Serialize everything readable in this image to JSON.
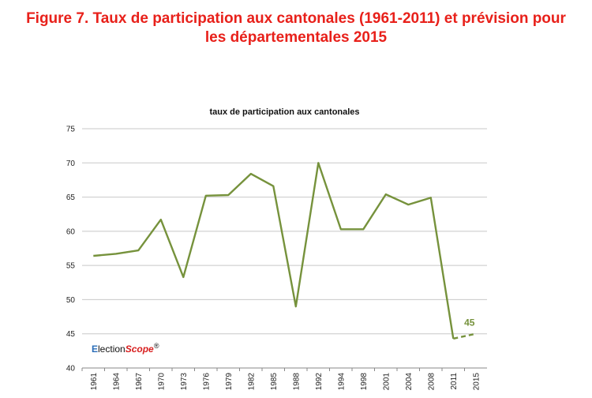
{
  "figure": {
    "title_line1": "Figure 7. Taux de participation aux cantonales (1961-2011) et prévision pour",
    "title_line2": "les départementales 2015"
  },
  "logo": {
    "part1": "E",
    "part2": "lection",
    "part3": "Scope",
    "mark": "®"
  },
  "colors": {
    "title": "#e8201a",
    "series": "#76923c",
    "grid": "#c8c8c8"
  },
  "chart_data": {
    "type": "line",
    "title": "taux de participation aux cantonales",
    "xlabel": "",
    "ylabel": "",
    "categories": [
      "1961",
      "1964",
      "1967",
      "1970",
      "1973",
      "1976",
      "1979",
      "1982",
      "1985",
      "1988",
      "1992",
      "1994",
      "1998",
      "2001",
      "2004",
      "2008",
      "2011",
      "2015"
    ],
    "ylim": [
      40,
      75
    ],
    "yticks": [
      40,
      45,
      50,
      55,
      60,
      65,
      70,
      75
    ],
    "grid": true,
    "series": [
      {
        "values": [
          56.4,
          56.7,
          57.2,
          61.7,
          53.3,
          65.2,
          65.3,
          68.4,
          66.6,
          49.0,
          70.0,
          60.3,
          60.3,
          65.4,
          63.9,
          64.9,
          44.3,
          null
        ],
        "style": "solid"
      },
      {
        "values": [
          null,
          null,
          null,
          null,
          null,
          null,
          null,
          null,
          null,
          null,
          null,
          null,
          null,
          null,
          null,
          null,
          44.3,
          45.0
        ],
        "style": "dashed"
      }
    ],
    "annotations": [
      {
        "category": "2015",
        "value": 45,
        "text": "45"
      }
    ]
  }
}
